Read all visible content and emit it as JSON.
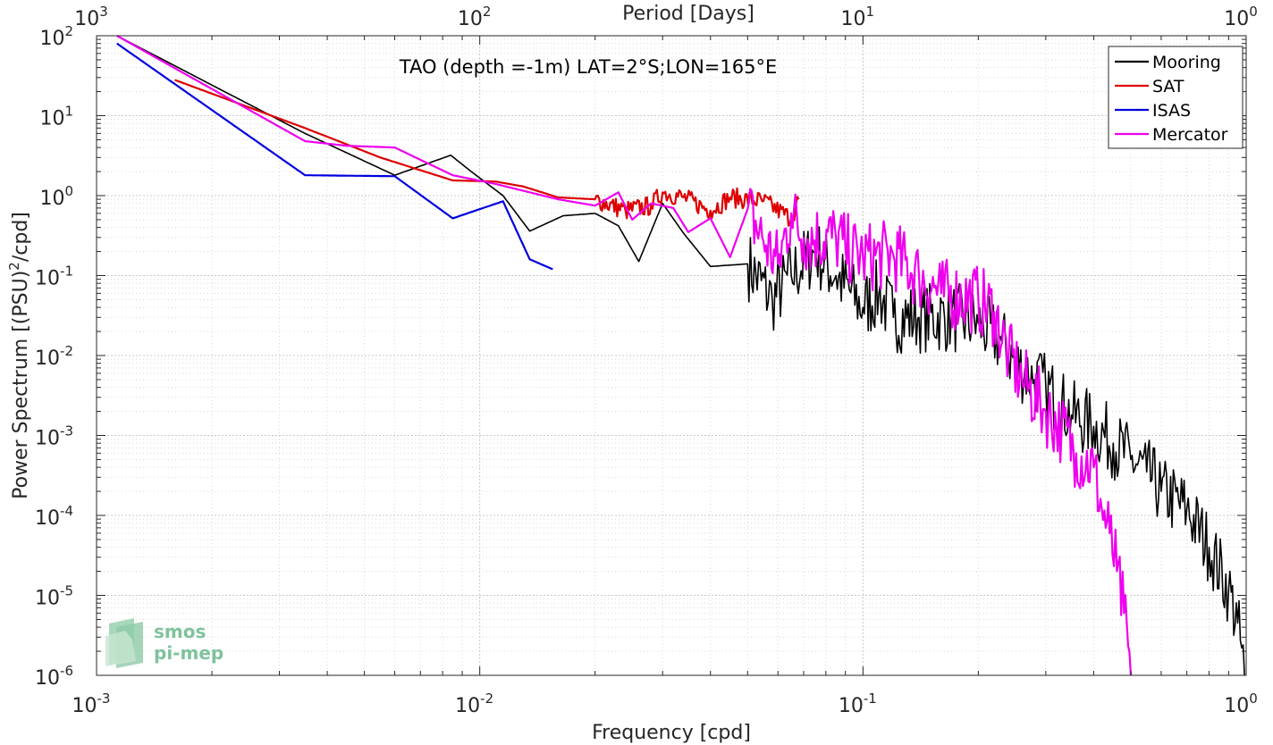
{
  "chart_data": {
    "type": "line",
    "title": "TAO (depth =-1m) LAT=2°S;LON=165°E",
    "xlabel": "Frequency [cpd]",
    "ylabel": "Power Spectrum [(PSU)²/cpd]",
    "ylabel_main": "Power Spectrum [(PSU)",
    "ylabel_sup": "2",
    "ylabel_tail": "/cpd]",
    "x2label": "Period [Days]",
    "xscale": "log",
    "yscale": "log",
    "xlim": [
      0.001,
      1
    ],
    "ylim": [
      1e-06,
      100
    ],
    "grid": true,
    "legend_position": "top-right",
    "x_ticks": [
      {
        "base": "10",
        "exp": "-3",
        "value": 0.001
      },
      {
        "base": "10",
        "exp": "-2",
        "value": 0.01
      },
      {
        "base": "10",
        "exp": "-1",
        "value": 0.1
      },
      {
        "base": "10",
        "exp": "0",
        "value": 1
      }
    ],
    "x2_ticks": [
      {
        "base": "10",
        "exp": "3",
        "value": 0.001
      },
      {
        "base": "10",
        "exp": "2",
        "value": 0.01
      },
      {
        "base": "10",
        "exp": "1",
        "value": 0.1
      },
      {
        "base": "10",
        "exp": "0",
        "value": 1
      }
    ],
    "y_ticks": [
      {
        "base": "10",
        "exp": "2",
        "value": 100
      },
      {
        "base": "10",
        "exp": "1",
        "value": 10
      },
      {
        "base": "10",
        "exp": "0",
        "value": 1
      },
      {
        "base": "10",
        "exp": "-1",
        "value": 0.1
      },
      {
        "base": "10",
        "exp": "-2",
        "value": 0.01
      },
      {
        "base": "10",
        "exp": "-3",
        "value": 0.001
      },
      {
        "base": "10",
        "exp": "-4",
        "value": 0.0001
      },
      {
        "base": "10",
        "exp": "-5",
        "value": 1e-05
      },
      {
        "base": "10",
        "exp": "-6",
        "value": 1e-06
      }
    ],
    "series": [
      {
        "name": "Mooring",
        "color": "#000000",
        "anchors": [
          [
            0.00113,
            100
          ],
          [
            0.0035,
            6
          ],
          [
            0.006,
            1.8
          ],
          [
            0.0084,
            3.2
          ],
          [
            0.0095,
            2.0
          ],
          [
            0.0115,
            1.0
          ],
          [
            0.0135,
            0.36
          ],
          [
            0.0165,
            0.56
          ],
          [
            0.02,
            0.6
          ],
          [
            0.023,
            0.42
          ],
          [
            0.026,
            0.15
          ],
          [
            0.03,
            0.8
          ],
          [
            0.034,
            0.34
          ],
          [
            0.04,
            0.13
          ],
          [
            0.05,
            0.14
          ],
          [
            0.058,
            0.05
          ],
          [
            0.065,
            0.1
          ],
          [
            0.075,
            0.2
          ],
          [
            0.085,
            0.1
          ],
          [
            0.1,
            0.04
          ],
          [
            0.11,
            0.06
          ],
          [
            0.12,
            0.03
          ],
          [
            0.14,
            0.03
          ],
          [
            0.17,
            0.03
          ],
          [
            0.2,
            0.025
          ],
          [
            0.23,
            0.015
          ],
          [
            0.25,
            0.008
          ],
          [
            0.28,
            0.005
          ],
          [
            0.3,
            0.004
          ],
          [
            0.35,
            0.0018
          ],
          [
            0.4,
            0.0013
          ],
          [
            0.45,
            0.0008
          ],
          [
            0.5,
            0.0005
          ],
          [
            0.55,
            0.00035
          ],
          [
            0.6,
            0.0002
          ],
          [
            0.7,
            0.00012
          ],
          [
            0.8,
            4e-05
          ],
          [
            0.9,
            1.2e-05
          ],
          [
            0.95,
            4.5e-06
          ],
          [
            0.99,
            1e-06
          ]
        ],
        "noise": 0.9,
        "noise_from": 0.05
      },
      {
        "name": "SAT",
        "color": "#dd0000",
        "anchors": [
          [
            0.0016,
            28
          ],
          [
            0.0035,
            7
          ],
          [
            0.0055,
            3.0
          ],
          [
            0.0085,
            1.55
          ],
          [
            0.011,
            1.5
          ],
          [
            0.013,
            1.3
          ],
          [
            0.016,
            0.95
          ],
          [
            0.02,
            0.9
          ],
          [
            0.024,
            0.65
          ],
          [
            0.028,
            0.75
          ],
          [
            0.03,
            1.1
          ],
          [
            0.034,
            0.95
          ],
          [
            0.04,
            0.65
          ],
          [
            0.045,
            0.95
          ],
          [
            0.055,
            0.85
          ],
          [
            0.065,
            0.52
          ],
          [
            0.068,
            0.9
          ]
        ],
        "noise": 0.25,
        "noise_from": 0.02
      },
      {
        "name": "ISAS",
        "color": "#0000dd",
        "anchors": [
          [
            0.00113,
            80
          ],
          [
            0.0035,
            1.8
          ],
          [
            0.006,
            1.75
          ],
          [
            0.0085,
            0.52
          ],
          [
            0.0115,
            0.85
          ],
          [
            0.0135,
            0.16
          ],
          [
            0.0155,
            0.12
          ]
        ],
        "noise": 0,
        "noise_from": 1
      },
      {
        "name": "Mercator",
        "color": "#ee00ee",
        "anchors": [
          [
            0.00113,
            100
          ],
          [
            0.0035,
            4.8
          ],
          [
            0.0045,
            4.2
          ],
          [
            0.006,
            4.0
          ],
          [
            0.0085,
            1.8
          ],
          [
            0.011,
            1.4
          ],
          [
            0.016,
            0.9
          ],
          [
            0.02,
            0.75
          ],
          [
            0.023,
            1.1
          ],
          [
            0.025,
            0.5
          ],
          [
            0.028,
            0.8
          ],
          [
            0.032,
            0.7
          ],
          [
            0.035,
            0.35
          ],
          [
            0.04,
            0.52
          ],
          [
            0.045,
            0.17
          ],
          [
            0.05,
            0.68
          ],
          [
            0.055,
            0.27
          ],
          [
            0.06,
            0.14
          ],
          [
            0.065,
            0.6
          ],
          [
            0.07,
            0.3
          ],
          [
            0.085,
            0.3
          ],
          [
            0.09,
            0.22
          ],
          [
            0.1,
            0.17
          ],
          [
            0.12,
            0.18
          ],
          [
            0.14,
            0.1
          ],
          [
            0.16,
            0.06
          ],
          [
            0.2,
            0.05
          ],
          [
            0.22,
            0.035
          ],
          [
            0.24,
            0.01
          ],
          [
            0.26,
            0.005
          ],
          [
            0.3,
            0.002
          ],
          [
            0.33,
            0.0012
          ],
          [
            0.36,
            0.0006
          ],
          [
            0.4,
            0.0004
          ],
          [
            0.42,
            0.00012
          ],
          [
            0.44,
            6e-05
          ],
          [
            0.46,
            2e-05
          ],
          [
            0.48,
            6e-06
          ],
          [
            0.5,
            1e-06
          ]
        ],
        "noise": 0.9,
        "noise_from": 0.05
      }
    ]
  },
  "watermark": {
    "line1": "smos",
    "line2": "pi-mep",
    "color": "#7fc29b"
  }
}
